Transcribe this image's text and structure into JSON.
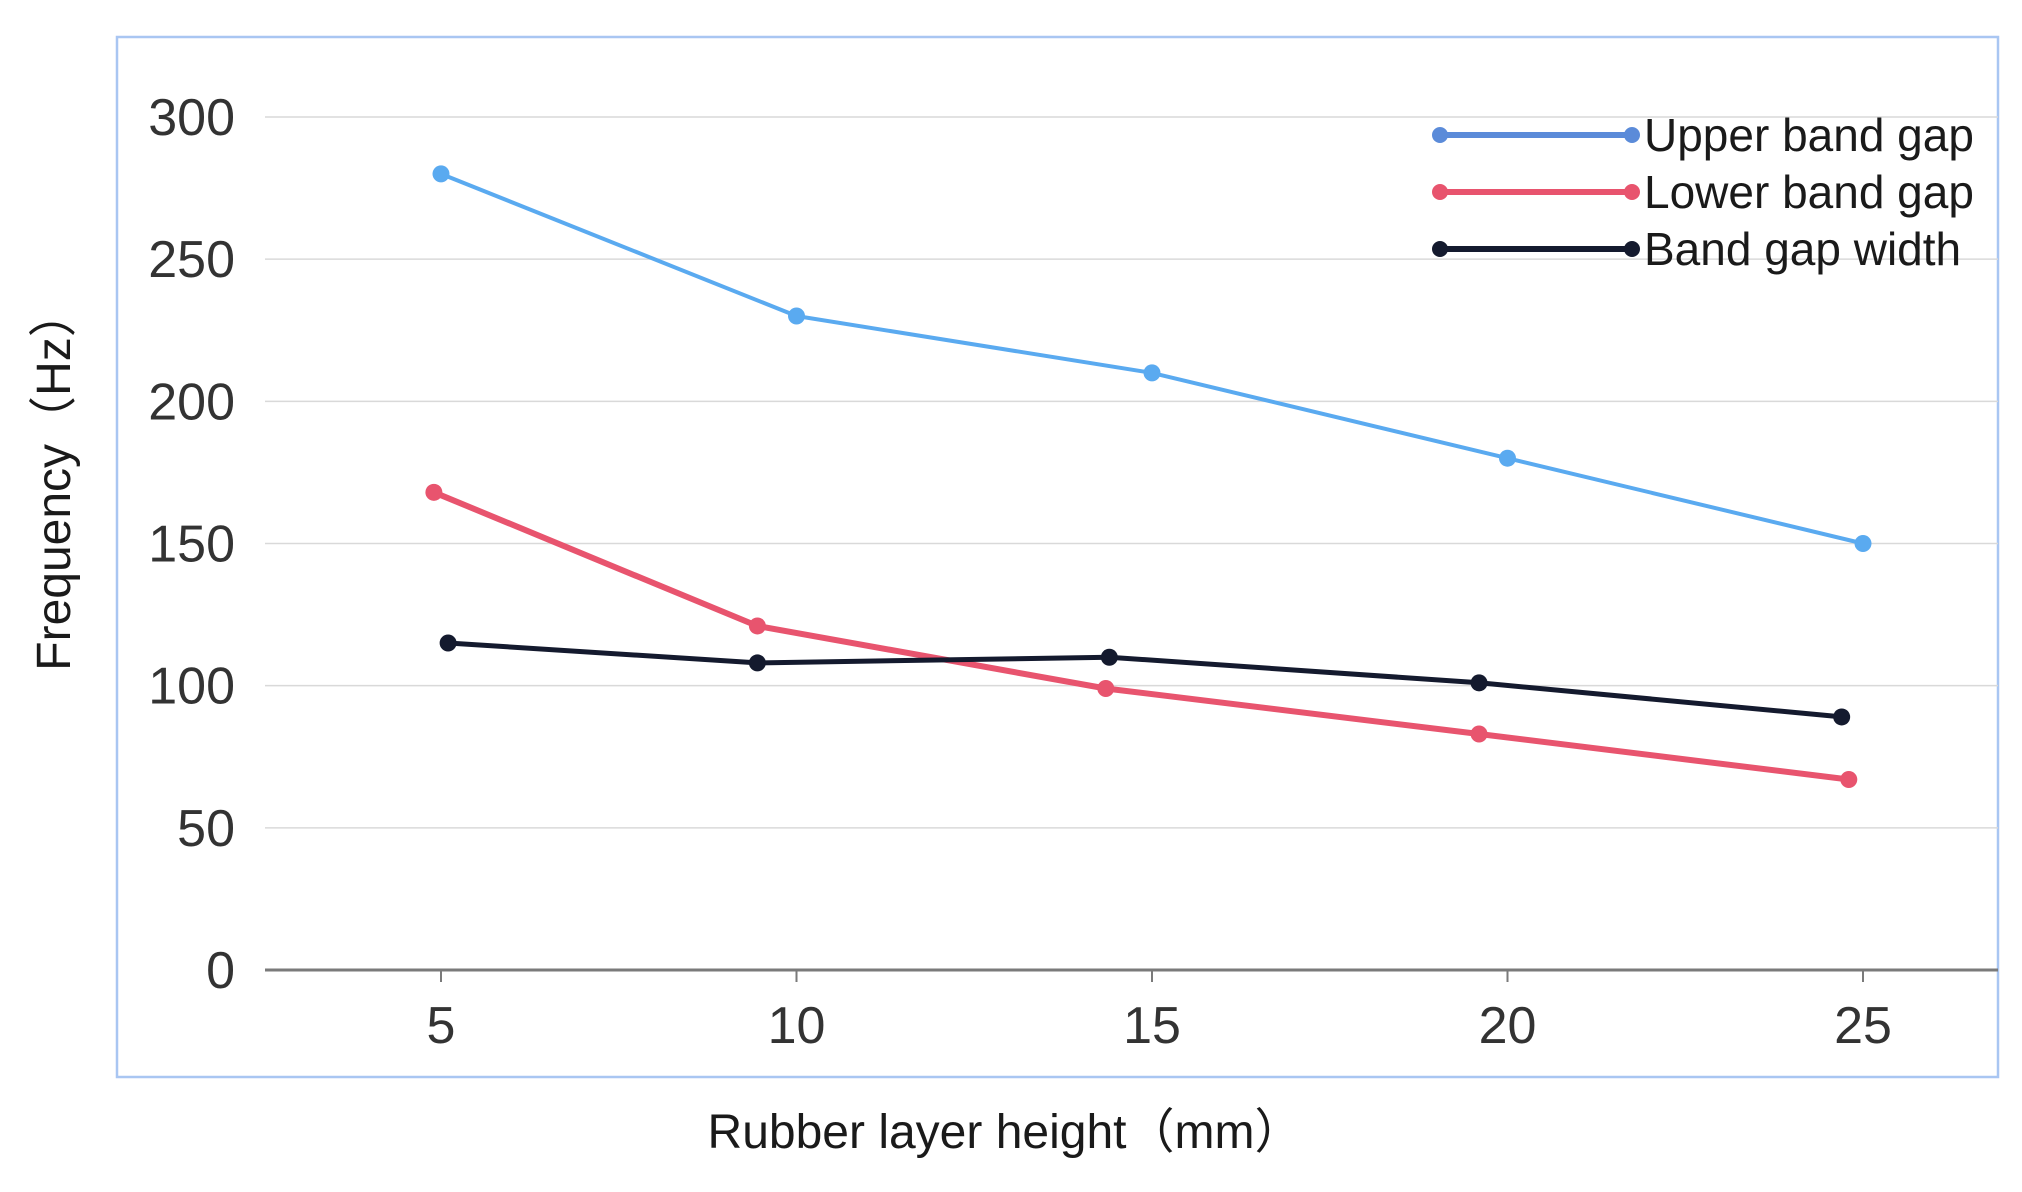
{
  "chart_data": {
    "type": "line",
    "title": "",
    "xlabel": "Rubber layer height（mm）",
    "ylabel": "Frequency（Hz）",
    "xlim": [
      2.5,
      27
    ],
    "ylim": [
      0,
      300
    ],
    "xticks": [
      5,
      10,
      15,
      20,
      25
    ],
    "yticks": [
      0,
      50,
      100,
      150,
      200,
      250,
      300
    ],
    "grid": true,
    "legend_position": "top-right",
    "series": [
      {
        "name": "Upper band gap",
        "color": "#5aaaf0",
        "legend_color": "#5b8bd9",
        "points": [
          [
            5,
            280
          ],
          [
            10,
            230
          ],
          [
            15,
            210
          ],
          [
            20,
            180
          ],
          [
            25,
            150
          ]
        ]
      },
      {
        "name": "Lower band gap",
        "color": "#e8546e",
        "legend_color": "#e8546e",
        "points": [
          [
            4.9,
            168
          ],
          [
            9.45,
            121
          ],
          [
            14.35,
            99
          ],
          [
            19.6,
            83
          ],
          [
            24.8,
            67
          ]
        ]
      },
      {
        "name": "Band gap width",
        "color": "#141a2e",
        "legend_color": "#141a2e",
        "points": [
          [
            5.1,
            115
          ],
          [
            9.45,
            108
          ],
          [
            14.4,
            110
          ],
          [
            19.6,
            101
          ],
          [
            24.7,
            89
          ]
        ]
      }
    ]
  }
}
